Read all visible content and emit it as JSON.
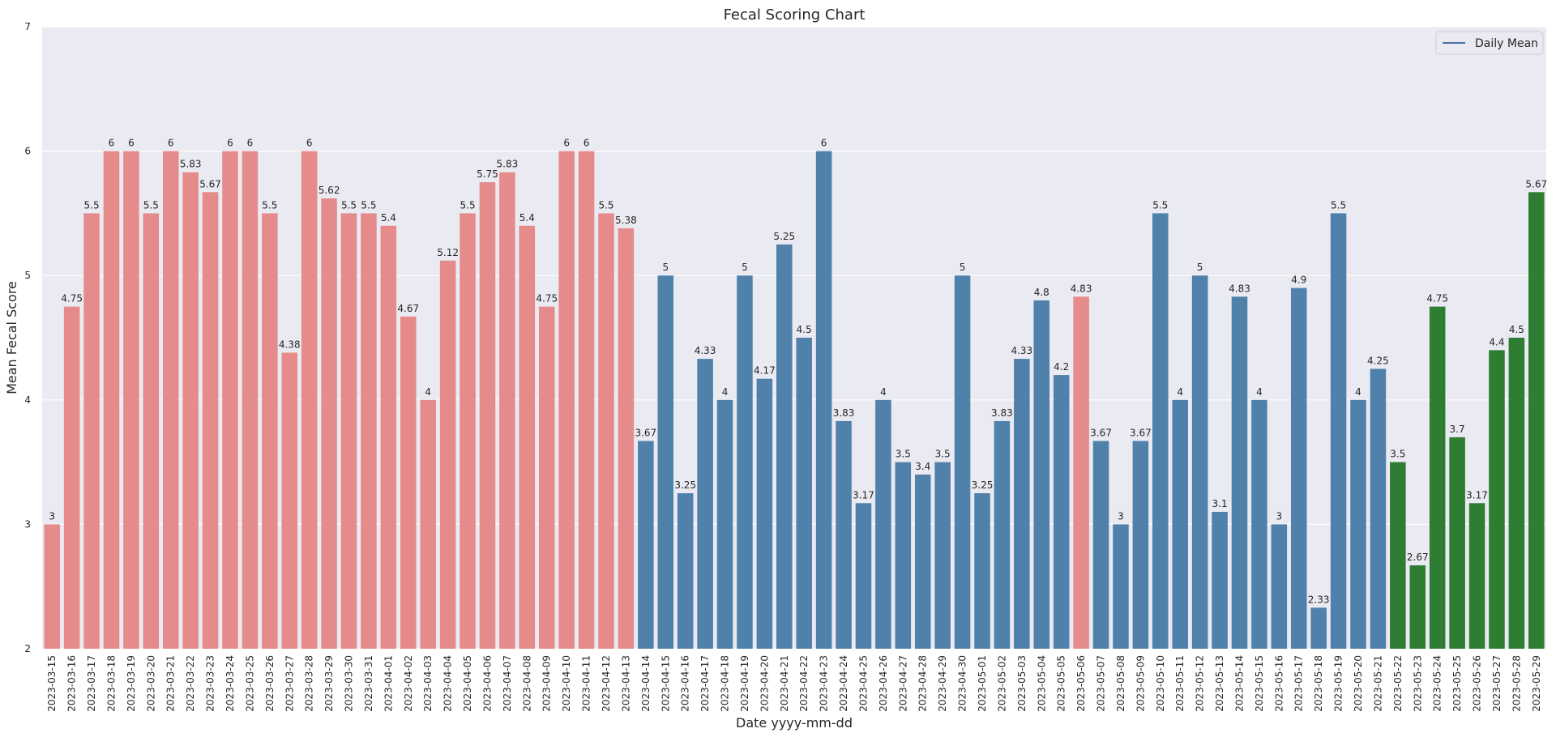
{
  "chart_data": {
    "type": "bar",
    "title": "Fecal Scoring Chart",
    "xlabel": "Date yyyy-mm-dd",
    "ylabel": "Mean Fecal Score",
    "ylim": [
      2,
      7
    ],
    "yticks": [
      2,
      3,
      4,
      5,
      6,
      7
    ],
    "grid": true,
    "legend": {
      "placement": "top-right",
      "entries": [
        {
          "label": "Daily Mean",
          "color": "#4a6fa5"
        }
      ]
    },
    "colors": {
      "pink": "#e58b8b",
      "blue": "#4f81aa",
      "green": "#2e7d32",
      "background": "#eaeaf2",
      "grid": "#ffffff"
    },
    "categories": [
      "2023-03-15",
      "2023-03-16",
      "2023-03-17",
      "2023-03-18",
      "2023-03-19",
      "2023-03-20",
      "2023-03-21",
      "2023-03-22",
      "2023-03-23",
      "2023-03-24",
      "2023-03-25",
      "2023-03-26",
      "2023-03-27",
      "2023-03-28",
      "2023-03-29",
      "2023-03-30",
      "2023-03-31",
      "2023-04-01",
      "2023-04-02",
      "2023-04-03",
      "2023-04-04",
      "2023-04-05",
      "2023-04-06",
      "2023-04-07",
      "2023-04-08",
      "2023-04-09",
      "2023-04-10",
      "2023-04-11",
      "2023-04-12",
      "2023-04-13",
      "2023-04-14",
      "2023-04-15",
      "2023-04-16",
      "2023-04-17",
      "2023-04-18",
      "2023-04-19",
      "2023-04-20",
      "2023-04-21",
      "2023-04-22",
      "2023-04-23",
      "2023-04-24",
      "2023-04-25",
      "2023-04-26",
      "2023-04-27",
      "2023-04-28",
      "2023-04-29",
      "2023-04-30",
      "2023-05-01",
      "2023-05-02",
      "2023-05-03",
      "2023-05-04",
      "2023-05-05",
      "2023-05-06",
      "2023-05-07",
      "2023-05-08",
      "2023-05-09",
      "2023-05-10",
      "2023-05-11",
      "2023-05-12",
      "2023-05-13",
      "2023-05-14",
      "2023-05-15",
      "2023-05-16",
      "2023-05-17",
      "2023-05-18",
      "2023-05-19",
      "2023-05-20",
      "2023-05-21",
      "2023-05-22",
      "2023-05-23",
      "2023-05-24",
      "2023-05-25",
      "2023-05-26",
      "2023-05-27",
      "2023-05-28",
      "2023-05-29"
    ],
    "values": [
      3,
      4.75,
      5.5,
      6,
      6,
      5.5,
      6,
      5.83,
      5.67,
      6,
      6,
      5.5,
      4.38,
      6,
      5.62,
      5.5,
      5.5,
      5.4,
      4.67,
      4,
      5.12,
      5.5,
      5.75,
      5.83,
      5.4,
      4.75,
      6,
      6,
      5.5,
      5.38,
      3.67,
      5,
      3.25,
      4.33,
      4,
      5,
      4.17,
      5.25,
      4.5,
      6,
      3.83,
      3.17,
      4,
      3.5,
      3.4,
      3.5,
      5,
      3.25,
      3.83,
      4.33,
      4.8,
      4.2,
      4.83,
      3.67,
      3,
      3.67,
      5.5,
      4,
      5,
      3.1,
      4.83,
      4,
      3,
      4.9,
      2.33,
      5.5,
      4,
      4.25,
      3.5,
      2.67,
      4.75,
      3.7,
      3.17,
      4.4,
      4.5,
      5.67
    ],
    "bar_colors": [
      "pink",
      "pink",
      "pink",
      "pink",
      "pink",
      "pink",
      "pink",
      "pink",
      "pink",
      "pink",
      "pink",
      "pink",
      "pink",
      "pink",
      "pink",
      "pink",
      "pink",
      "pink",
      "pink",
      "pink",
      "pink",
      "pink",
      "pink",
      "pink",
      "pink",
      "pink",
      "pink",
      "pink",
      "pink",
      "pink",
      "blue",
      "blue",
      "blue",
      "blue",
      "blue",
      "blue",
      "blue",
      "blue",
      "blue",
      "blue",
      "blue",
      "blue",
      "blue",
      "blue",
      "blue",
      "blue",
      "blue",
      "blue",
      "blue",
      "blue",
      "blue",
      "blue",
      "pink",
      "blue",
      "blue",
      "blue",
      "blue",
      "blue",
      "blue",
      "blue",
      "blue",
      "blue",
      "blue",
      "blue",
      "blue",
      "blue",
      "blue",
      "blue",
      "green",
      "green",
      "green",
      "green",
      "green",
      "green",
      "green",
      "green"
    ]
  }
}
